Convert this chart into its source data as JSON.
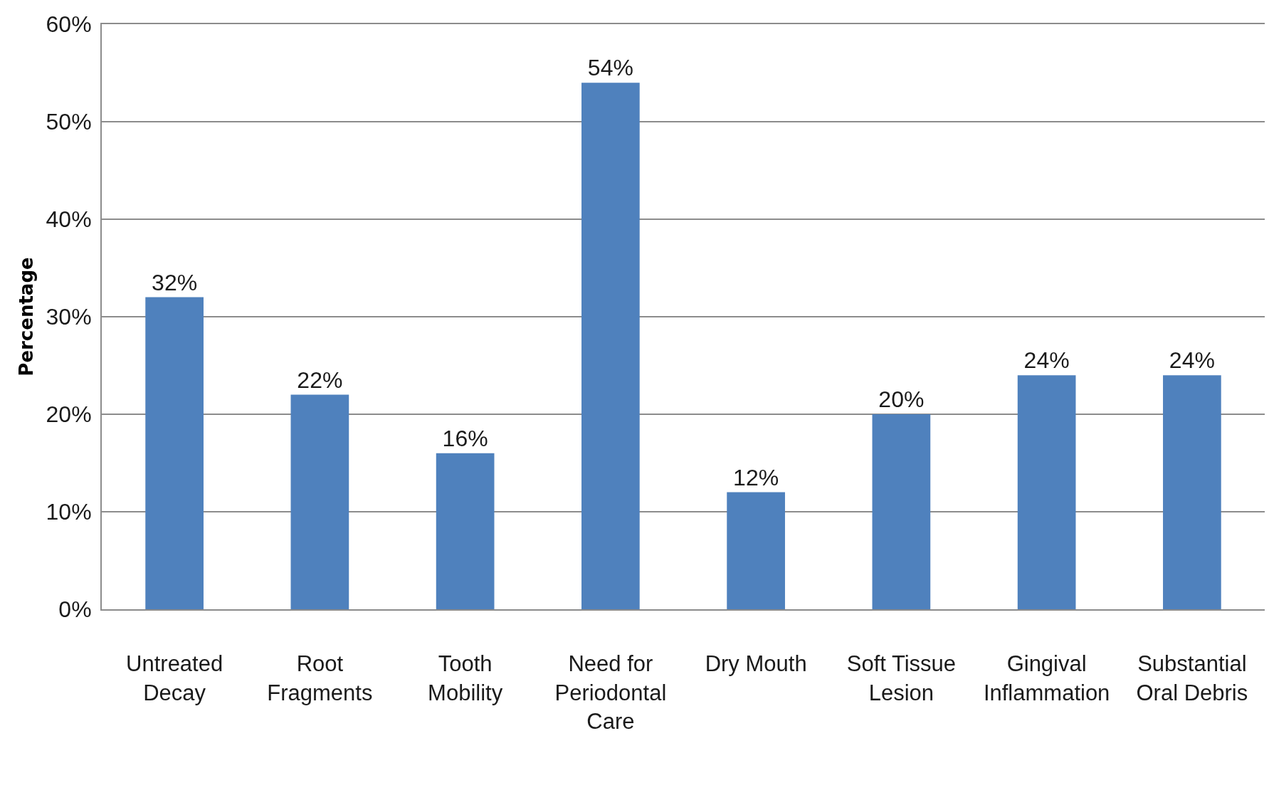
{
  "chart_data": {
    "type": "bar",
    "ylabel": "Percentage",
    "categories": [
      "Untreated Decay",
      "Root Fragments",
      "Tooth Mobility",
      "Need for Periodontal Care",
      "Dry Mouth",
      "Soft Tissue Lesion",
      "Gingival Inflammation",
      "Substantial Oral Debris"
    ],
    "values": [
      32,
      22,
      16,
      54,
      12,
      20,
      24,
      24
    ],
    "value_labels": [
      "32%",
      "22%",
      "16%",
      "54%",
      "12%",
      "20%",
      "24%",
      "24%"
    ],
    "color": "#4f81bd",
    "ylim": [
      0,
      60
    ],
    "yticks": [
      {
        "value": 0,
        "label": "0%"
      },
      {
        "value": 10,
        "label": "10%"
      },
      {
        "value": 20,
        "label": "20%"
      },
      {
        "value": 30,
        "label": "30%"
      },
      {
        "value": 40,
        "label": "40%"
      },
      {
        "value": 50,
        "label": "50%"
      },
      {
        "value": 60,
        "label": "60%"
      }
    ],
    "grid": "y"
  }
}
